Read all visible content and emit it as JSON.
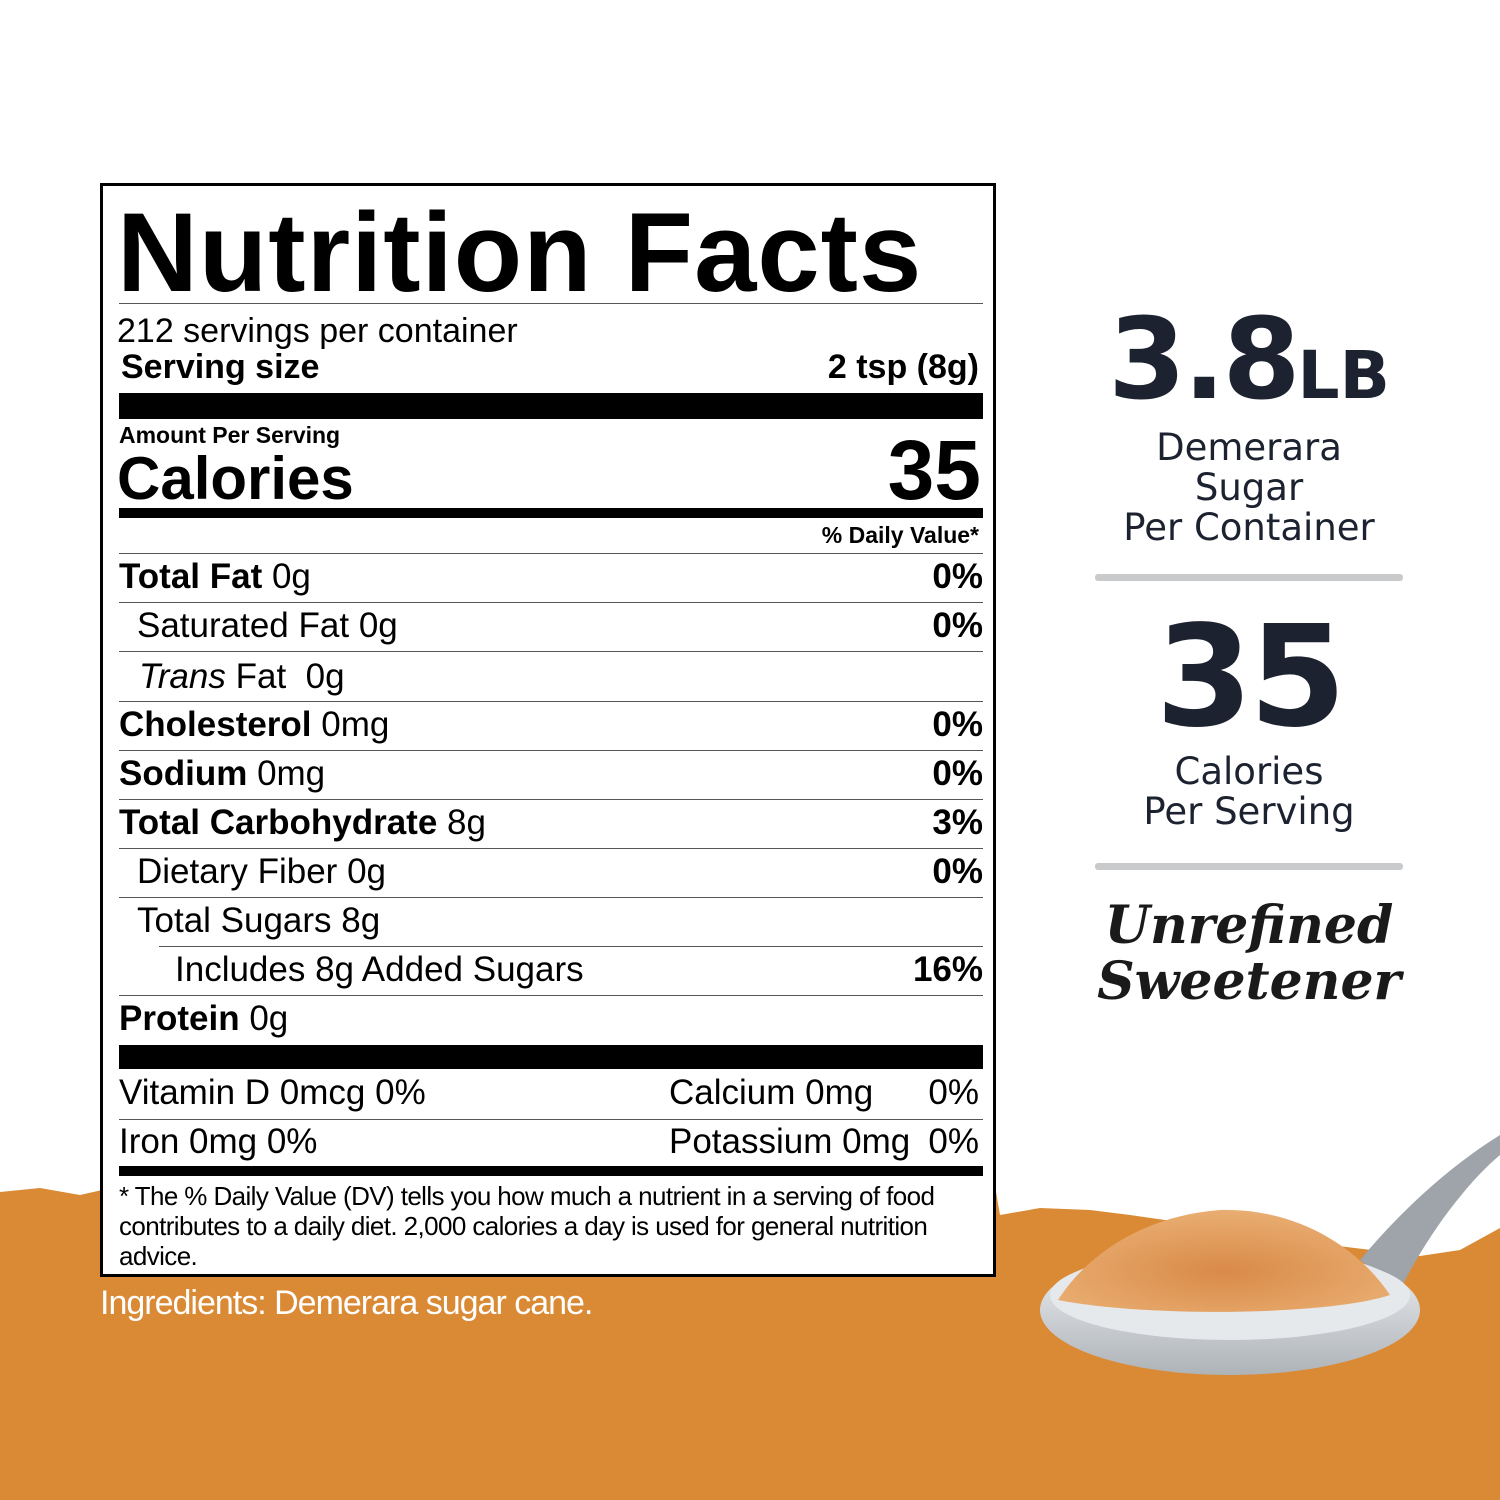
{
  "label": {
    "title": "Nutrition Facts",
    "servings": "212 servings per container",
    "serving_size_label": "Serving size",
    "serving_size_value": "2 tsp (8g)",
    "amount_per_serving": "Amount Per Serving",
    "calories_label": "Calories",
    "calories_value": "35",
    "dv_header": "% Daily Value*",
    "nutrients": [
      {
        "name": "Total Fat",
        "amount": "0g",
        "dv": "0%"
      },
      {
        "name": "Saturated Fat",
        "amount": "0g",
        "dv": "0%"
      },
      {
        "name": "Trans",
        "name_suffix": "Fat",
        "amount": "0g",
        "dv": ""
      },
      {
        "name": "Cholesterol",
        "amount": "0mg",
        "dv": "0%"
      },
      {
        "name": "Sodium",
        "amount": "0mg",
        "dv": "0%"
      },
      {
        "name": "Total Carbohydrate",
        "amount": "8g",
        "dv": "3%"
      },
      {
        "name": "Dietary Fiber",
        "amount": "0g",
        "dv": "0%"
      },
      {
        "name": "Total Sugars",
        "amount": "8g",
        "dv": ""
      },
      {
        "name": "Includes 8g Added Sugars",
        "amount": "",
        "dv": "16%"
      },
      {
        "name": "Protein",
        "amount": "0g",
        "dv": ""
      }
    ],
    "vitamins": [
      {
        "left": "Vitamin D  0mcg 0%",
        "right_name": "Calcium  0mg",
        "right_dv": "0%"
      },
      {
        "left": "Iron  0mg 0%",
        "right_name": "Potassium  0mg",
        "right_dv": "0%"
      }
    ],
    "footnote": "* The % Daily Value (DV) tells you how much a nutrient in a serving of food contributes to a daily diet. 2,000 calories a day is used for general nutrition advice."
  },
  "ingredients": "Ingredients: Demerara sugar cane.",
  "side": {
    "weight_number": "3.8",
    "weight_unit": "LB",
    "weight_caption": [
      "Demerara",
      "Sugar",
      "Per Container"
    ],
    "calories_number": "35",
    "calories_caption": [
      "Calories",
      "Per Serving"
    ],
    "tagline": [
      "Unrefined",
      "Sweetener"
    ]
  },
  "colors": {
    "orange": "#DA8A35",
    "text_dark": "#1c2230",
    "divider": "#c8cacb"
  }
}
